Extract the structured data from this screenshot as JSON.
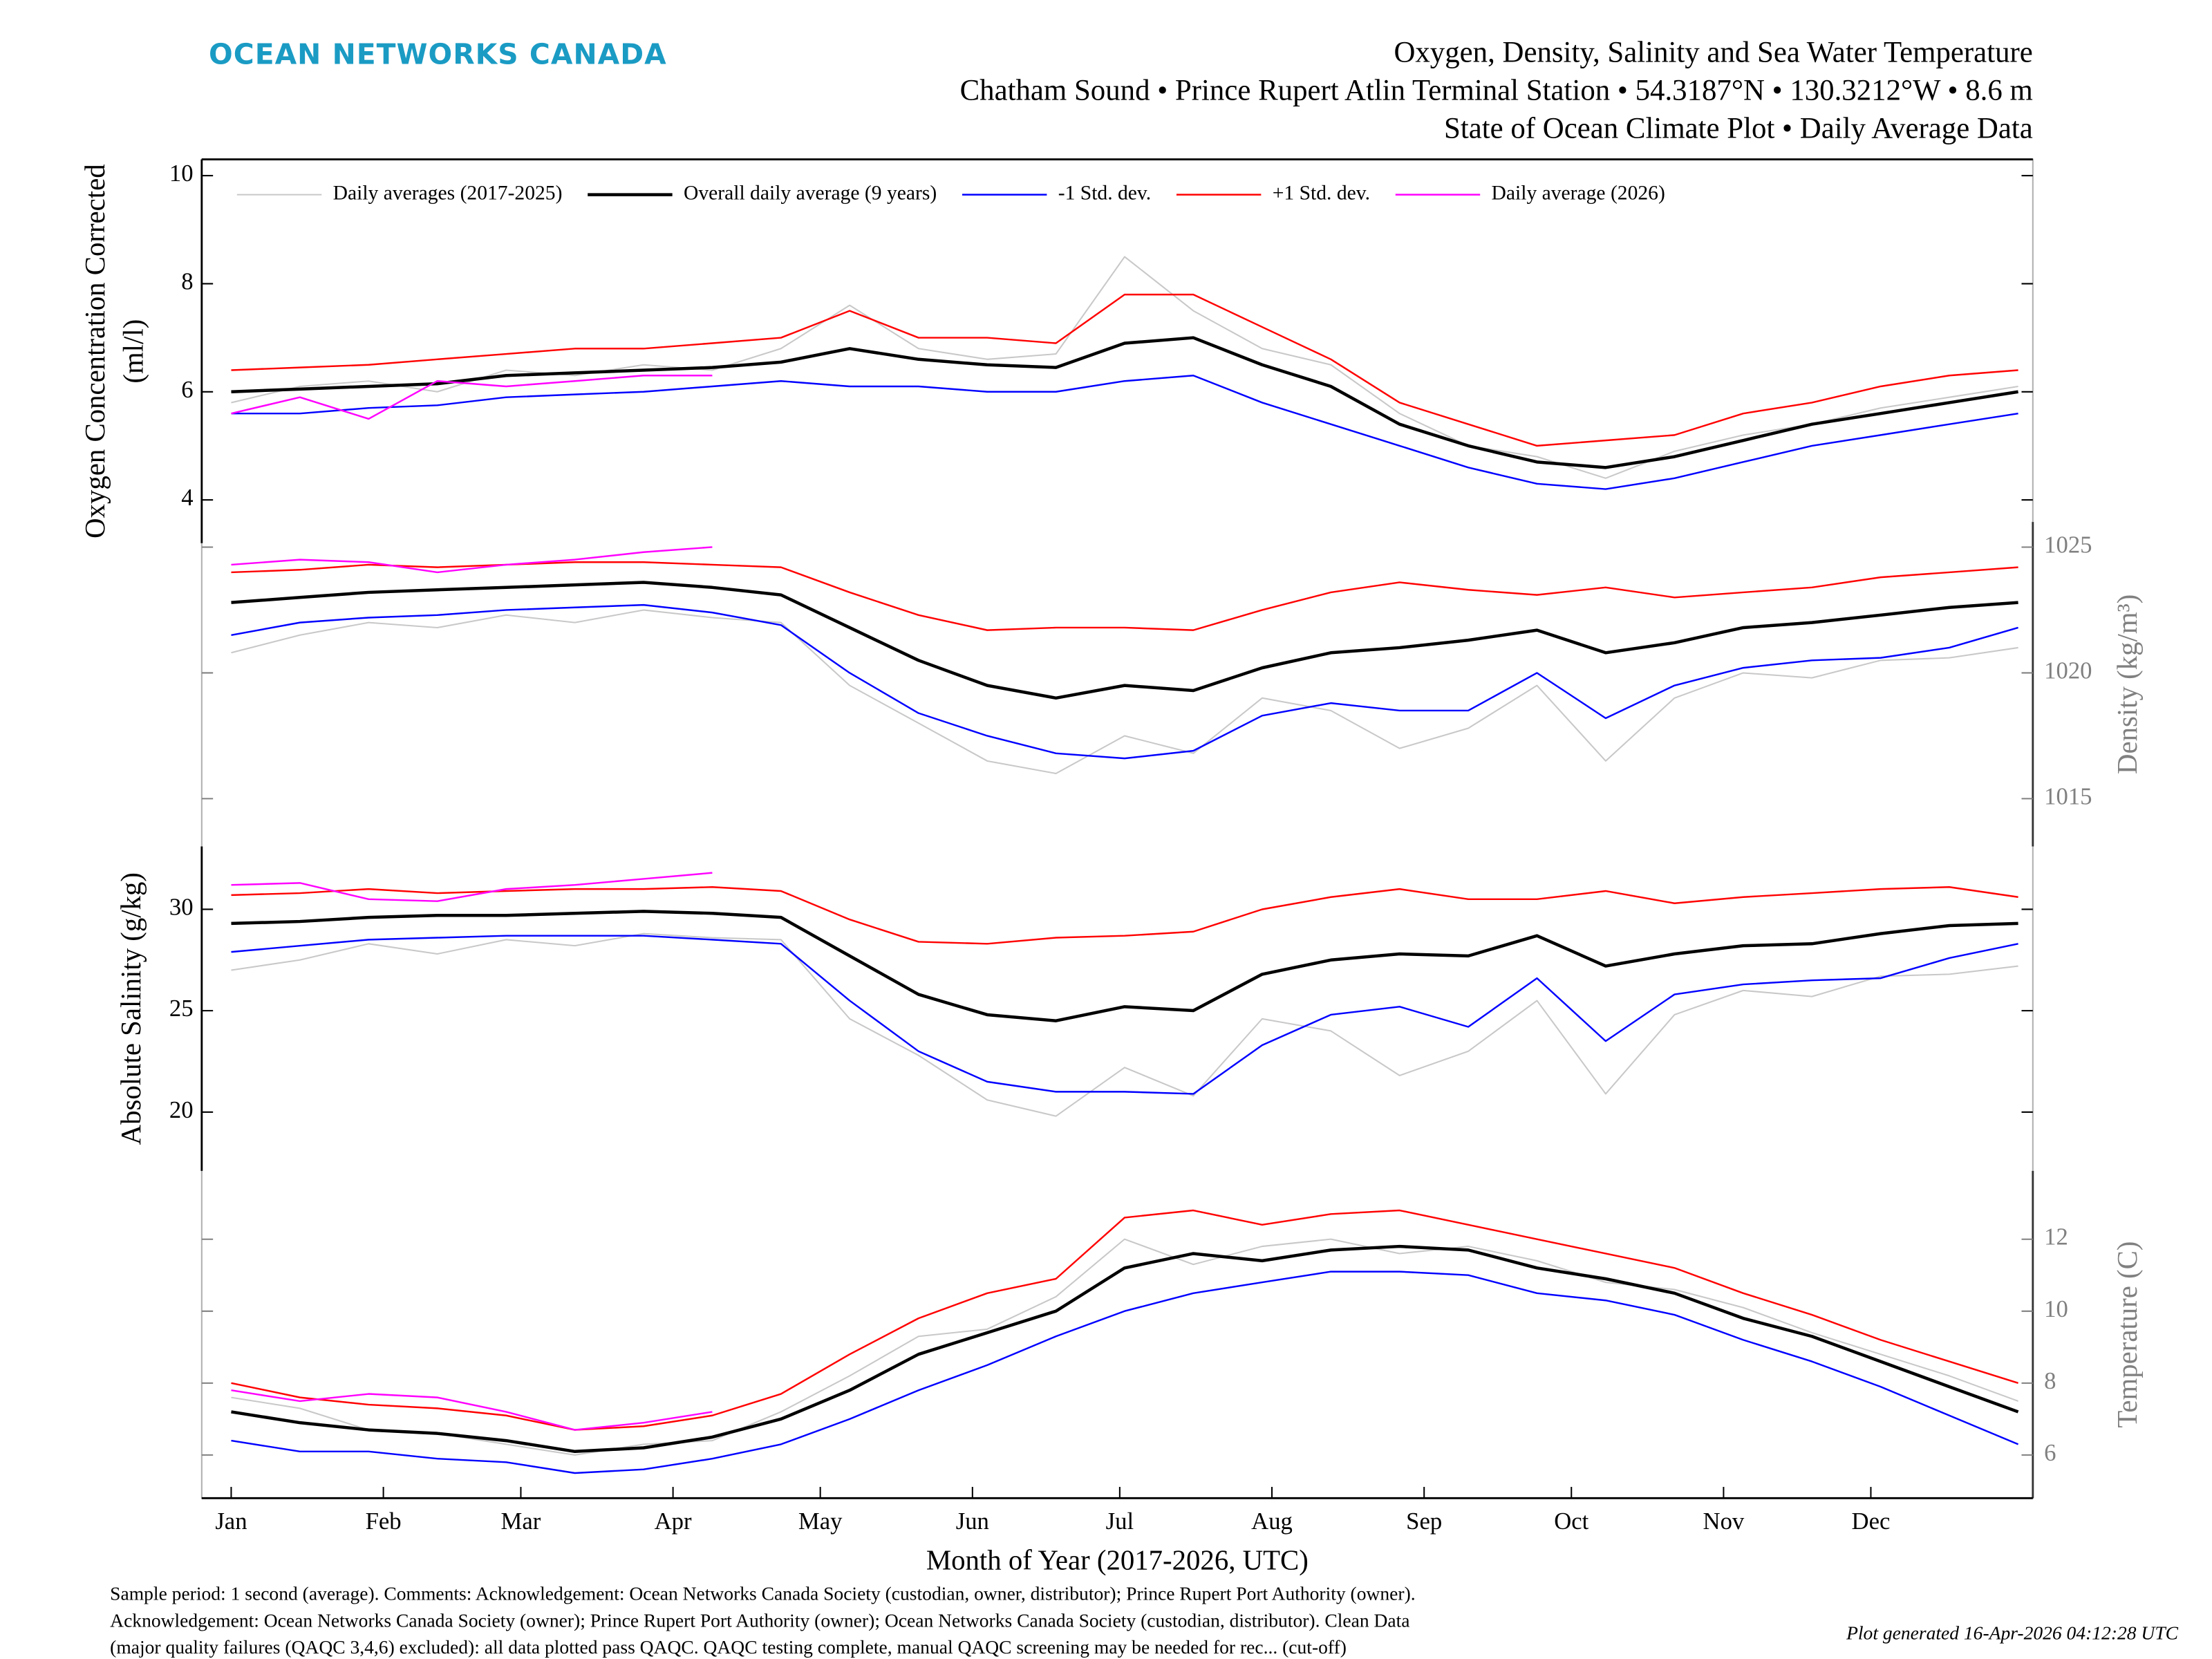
{
  "header": {
    "brand": "OCEAN NETWORKS CANADA",
    "title": "Oxygen, Density, Salinity and Sea Water Temperature",
    "subtitle": "Chatham Sound • Prince Rupert Atlin Terminal Station • 54.3187°N • 130.3212°W • 8.6 m",
    "subtitle2": "State of Ocean Climate Plot • Daily Average Data"
  },
  "footer": {
    "lines": [
      "Sample period: 1 second (average). Comments: Acknowledgement: Ocean Networks Canada Society (custodian, owner, distributor); Prince Rupert Port Authority (owner).",
      "Acknowledgement: Ocean Networks Canada Society (owner); Prince Rupert Port Authority (owner); Ocean Networks Canada Society (custodian, distributor). Clean Data",
      "(major quality failures (QAQC 3,4,6) excluded): all data plotted pass QAQC. QAQC testing complete, manual QAQC screening may be needed for rec... (cut-off)"
    ],
    "generated": "Plot generated 16-Apr-2026 04:12:28 UTC"
  },
  "chart_data": [
    {
      "type": "line",
      "ylabel": [
        "Oxygen Concentration Corrected",
        "(ml/l)"
      ],
      "axis_side": "left",
      "axis_color": "#000000",
      "legend": "top",
      "x": [
        1,
        15,
        29,
        43,
        57,
        71,
        85,
        99,
        113,
        127,
        141,
        155,
        169,
        183,
        197,
        211,
        225,
        239,
        253,
        267,
        281,
        295,
        309,
        323,
        337,
        351,
        365
      ],
      "xlim": [
        -5,
        368
      ],
      "ylim": [
        3.2,
        10.3
      ],
      "yticks": [
        4,
        6,
        8,
        10
      ],
      "series": [
        {
          "name": "Daily averages (2017-2025)",
          "color": "#c8c8c8",
          "width": 1,
          "values": [
            5.8,
            6.1,
            6.2,
            6.0,
            6.4,
            6.3,
            6.5,
            6.4,
            6.8,
            7.6,
            6.8,
            6.6,
            6.7,
            8.5,
            7.5,
            6.8,
            6.5,
            5.6,
            5.0,
            4.8,
            4.4,
            4.9,
            5.2,
            5.4,
            5.7,
            5.9,
            6.1
          ]
        },
        {
          "name": "Overall daily average (9 years)",
          "color": "#000000",
          "width": 2.2,
          "values": [
            6.0,
            6.05,
            6.1,
            6.15,
            6.3,
            6.35,
            6.4,
            6.45,
            6.55,
            6.8,
            6.6,
            6.5,
            6.45,
            6.9,
            7.0,
            6.5,
            6.1,
            5.4,
            5.0,
            4.7,
            4.6,
            4.8,
            5.1,
            5.4,
            5.6,
            5.8,
            6.0
          ]
        },
        {
          "name": "-1 Std. dev.",
          "color": "#0000ff",
          "width": 1.2,
          "values": [
            5.6,
            5.6,
            5.7,
            5.75,
            5.9,
            5.95,
            6.0,
            6.1,
            6.2,
            6.1,
            6.1,
            6.0,
            6.0,
            6.2,
            6.3,
            5.8,
            5.4,
            5.0,
            4.6,
            4.3,
            4.2,
            4.4,
            4.7,
            5.0,
            5.2,
            5.4,
            5.6
          ]
        },
        {
          "name": "+1 Std. dev.",
          "color": "#ff0000",
          "width": 1.2,
          "values": [
            6.4,
            6.45,
            6.5,
            6.6,
            6.7,
            6.8,
            6.8,
            6.9,
            7.0,
            7.5,
            7.0,
            7.0,
            6.9,
            7.8,
            7.8,
            7.2,
            6.6,
            5.8,
            5.4,
            5.0,
            5.1,
            5.2,
            5.6,
            5.8,
            6.1,
            6.3,
            6.4
          ]
        },
        {
          "name": "Daily average (2026)",
          "color": "#ff00ff",
          "width": 1.2,
          "values": [
            5.6,
            5.9,
            5.5,
            6.2,
            6.1,
            6.2,
            6.3,
            6.3,
            null,
            null,
            null,
            null,
            null,
            null,
            null,
            null,
            null,
            null,
            null,
            null,
            null,
            null,
            null,
            null,
            null,
            null,
            null
          ]
        }
      ]
    },
    {
      "type": "line",
      "ylabel": [
        "Density (kg/m³)"
      ],
      "axis_side": "right",
      "axis_color": "#808080",
      "x": [
        1,
        15,
        29,
        43,
        57,
        71,
        85,
        99,
        113,
        127,
        141,
        155,
        169,
        183,
        197,
        211,
        225,
        239,
        253,
        267,
        281,
        295,
        309,
        323,
        337,
        351,
        365
      ],
      "xlim": [
        -5,
        368
      ],
      "ylim": [
        1013.1,
        1026
      ],
      "yticks": [
        1015,
        1020,
        1025
      ],
      "series": [
        {
          "color": "#c8c8c8",
          "width": 1,
          "values": [
            1020.8,
            1021.5,
            1022.0,
            1021.8,
            1022.3,
            1022.0,
            1022.5,
            1022.2,
            1022.0,
            1019.5,
            1018.0,
            1016.5,
            1016.0,
            1017.5,
            1016.8,
            1019.0,
            1018.5,
            1017.0,
            1017.8,
            1019.5,
            1016.5,
            1019.0,
            1020.0,
            1019.8,
            1020.5,
            1020.6,
            1021.0
          ]
        },
        {
          "color": "#000000",
          "width": 2.2,
          "values": [
            1022.8,
            1023.0,
            1023.2,
            1023.3,
            1023.4,
            1023.5,
            1023.6,
            1023.4,
            1023.1,
            1021.8,
            1020.5,
            1019.5,
            1019.0,
            1019.5,
            1019.3,
            1020.2,
            1020.8,
            1021.0,
            1021.3,
            1021.7,
            1020.8,
            1021.2,
            1021.8,
            1022.0,
            1022.3,
            1022.6,
            1022.8
          ]
        },
        {
          "color": "#0000ff",
          "width": 1.2,
          "values": [
            1021.5,
            1022.0,
            1022.2,
            1022.3,
            1022.5,
            1022.6,
            1022.7,
            1022.4,
            1021.9,
            1020.0,
            1018.4,
            1017.5,
            1016.8,
            1016.6,
            1016.9,
            1018.3,
            1018.8,
            1018.5,
            1018.5,
            1020.0,
            1018.2,
            1019.5,
            1020.2,
            1020.5,
            1020.6,
            1021.0,
            1021.8
          ]
        },
        {
          "color": "#ff0000",
          "width": 1.2,
          "values": [
            1024.0,
            1024.1,
            1024.3,
            1024.2,
            1024.3,
            1024.4,
            1024.4,
            1024.3,
            1024.2,
            1023.2,
            1022.3,
            1021.7,
            1021.8,
            1021.8,
            1021.7,
            1022.5,
            1023.2,
            1023.6,
            1023.3,
            1023.1,
            1023.4,
            1023.0,
            1023.2,
            1023.4,
            1023.8,
            1024.0,
            1024.2
          ]
        },
        {
          "color": "#ff00ff",
          "width": 1.2,
          "values": [
            1024.3,
            1024.5,
            1024.4,
            1024.0,
            1024.3,
            1024.5,
            1024.8,
            1025.0,
            null,
            null,
            null,
            null,
            null,
            null,
            null,
            null,
            null,
            null,
            null,
            null,
            null,
            null,
            null,
            null,
            null,
            null,
            null
          ]
        }
      ]
    },
    {
      "type": "line",
      "ylabel": [
        "Absolute Salinity (g/kg)"
      ],
      "axis_side": "left",
      "axis_color": "#000000",
      "x": [
        1,
        15,
        29,
        43,
        57,
        71,
        85,
        99,
        113,
        127,
        141,
        155,
        169,
        183,
        197,
        211,
        225,
        239,
        253,
        267,
        281,
        295,
        309,
        323,
        337,
        351,
        365
      ],
      "xlim": [
        -5,
        368
      ],
      "ylim": [
        17.1,
        33.1
      ],
      "yticks": [
        20,
        25,
        30
      ],
      "series": [
        {
          "color": "#c8c8c8",
          "width": 1,
          "values": [
            27.0,
            27.5,
            28.3,
            27.8,
            28.5,
            28.2,
            28.8,
            28.6,
            28.5,
            24.6,
            22.8,
            20.6,
            19.8,
            22.2,
            20.8,
            24.6,
            24.0,
            21.8,
            23.0,
            25.5,
            20.9,
            24.8,
            26.0,
            25.7,
            26.7,
            26.8,
            27.2
          ]
        },
        {
          "color": "#000000",
          "width": 2.2,
          "values": [
            29.3,
            29.4,
            29.6,
            29.7,
            29.7,
            29.8,
            29.9,
            29.8,
            29.6,
            27.7,
            25.8,
            24.8,
            24.5,
            25.2,
            25.0,
            26.8,
            27.5,
            27.8,
            27.7,
            28.7,
            27.2,
            27.8,
            28.2,
            28.3,
            28.8,
            29.2,
            29.3
          ]
        },
        {
          "color": "#0000ff",
          "width": 1.2,
          "values": [
            27.9,
            28.2,
            28.5,
            28.6,
            28.7,
            28.7,
            28.7,
            28.5,
            28.3,
            25.5,
            23.0,
            21.5,
            21.0,
            21.0,
            20.9,
            23.3,
            24.8,
            25.2,
            24.2,
            26.6,
            23.5,
            25.8,
            26.3,
            26.5,
            26.6,
            27.6,
            28.3
          ]
        },
        {
          "color": "#ff0000",
          "width": 1.2,
          "values": [
            30.7,
            30.8,
            31.0,
            30.8,
            30.9,
            31.0,
            31.0,
            31.1,
            30.9,
            29.5,
            28.4,
            28.3,
            28.6,
            28.7,
            28.9,
            30.0,
            30.6,
            31.0,
            30.5,
            30.5,
            30.9,
            30.3,
            30.6,
            30.8,
            31.0,
            31.1,
            30.6
          ]
        },
        {
          "color": "#ff00ff",
          "width": 1.2,
          "values": [
            31.2,
            31.3,
            30.5,
            30.4,
            31.0,
            31.2,
            31.5,
            31.8,
            null,
            null,
            null,
            null,
            null,
            null,
            null,
            null,
            null,
            null,
            null,
            null,
            null,
            null,
            null,
            null,
            null,
            null,
            null
          ]
        }
      ]
    },
    {
      "type": "line",
      "ylabel": [
        "Temperature (C)"
      ],
      "axis_side": "right",
      "axis_color": "#808080",
      "xlabel": "Month of Year (2017-2026, UTC)",
      "x": [
        1,
        15,
        29,
        43,
        57,
        71,
        85,
        99,
        113,
        127,
        141,
        155,
        169,
        183,
        197,
        211,
        225,
        239,
        253,
        267,
        281,
        295,
        309,
        323,
        337,
        351,
        365
      ],
      "xlim": [
        -5,
        368
      ],
      "xticks": [
        {
          "value": 1,
          "label": "Jan"
        },
        {
          "value": 32,
          "label": "Feb"
        },
        {
          "value": 60,
          "label": "Mar"
        },
        {
          "value": 91,
          "label": "Apr"
        },
        {
          "value": 121,
          "label": "May"
        },
        {
          "value": 152,
          "label": "Jun"
        },
        {
          "value": 182,
          "label": "Jul"
        },
        {
          "value": 213,
          "label": "Aug"
        },
        {
          "value": 244,
          "label": "Sep"
        },
        {
          "value": 274,
          "label": "Oct"
        },
        {
          "value": 305,
          "label": "Nov"
        },
        {
          "value": 335,
          "label": "Dec"
        }
      ],
      "ylim": [
        4.8,
        13.9
      ],
      "yticks": [
        6,
        8,
        10,
        12
      ],
      "series": [
        {
          "color": "#c8c8c8",
          "width": 1,
          "values": [
            7.6,
            7.3,
            6.7,
            6.6,
            6.3,
            6.0,
            6.3,
            6.4,
            7.2,
            8.2,
            9.3,
            9.5,
            10.4,
            12.0,
            11.3,
            11.8,
            12.0,
            11.6,
            11.8,
            11.4,
            10.8,
            10.6,
            10.1,
            9.4,
            8.8,
            8.2,
            7.5
          ]
        },
        {
          "color": "#000000",
          "width": 2.2,
          "values": [
            7.2,
            6.9,
            6.7,
            6.6,
            6.4,
            6.1,
            6.2,
            6.5,
            7.0,
            7.8,
            8.8,
            9.4,
            10.0,
            11.2,
            11.6,
            11.4,
            11.7,
            11.8,
            11.7,
            11.2,
            10.9,
            10.5,
            9.8,
            9.3,
            8.6,
            7.9,
            7.2
          ]
        },
        {
          "color": "#0000ff",
          "width": 1.2,
          "values": [
            6.4,
            6.1,
            6.1,
            5.9,
            5.8,
            5.5,
            5.6,
            5.9,
            6.3,
            7.0,
            7.8,
            8.5,
            9.3,
            10.0,
            10.5,
            10.8,
            11.1,
            11.1,
            11.0,
            10.5,
            10.3,
            9.9,
            9.2,
            8.6,
            7.9,
            7.1,
            6.3
          ]
        },
        {
          "color": "#ff0000",
          "width": 1.2,
          "values": [
            8.0,
            7.6,
            7.4,
            7.3,
            7.1,
            6.7,
            6.8,
            7.1,
            7.7,
            8.8,
            9.8,
            10.5,
            10.9,
            12.6,
            12.8,
            12.4,
            12.7,
            12.8,
            12.4,
            12.0,
            11.6,
            11.2,
            10.5,
            9.9,
            9.2,
            8.6,
            8.0
          ]
        },
        {
          "color": "#ff00ff",
          "width": 1.2,
          "values": [
            7.8,
            7.5,
            7.7,
            7.6,
            7.2,
            6.7,
            6.9,
            7.2,
            null,
            null,
            null,
            null,
            null,
            null,
            null,
            null,
            null,
            null,
            null,
            null,
            null,
            null,
            null,
            null,
            null,
            null,
            null
          ]
        }
      ]
    }
  ]
}
